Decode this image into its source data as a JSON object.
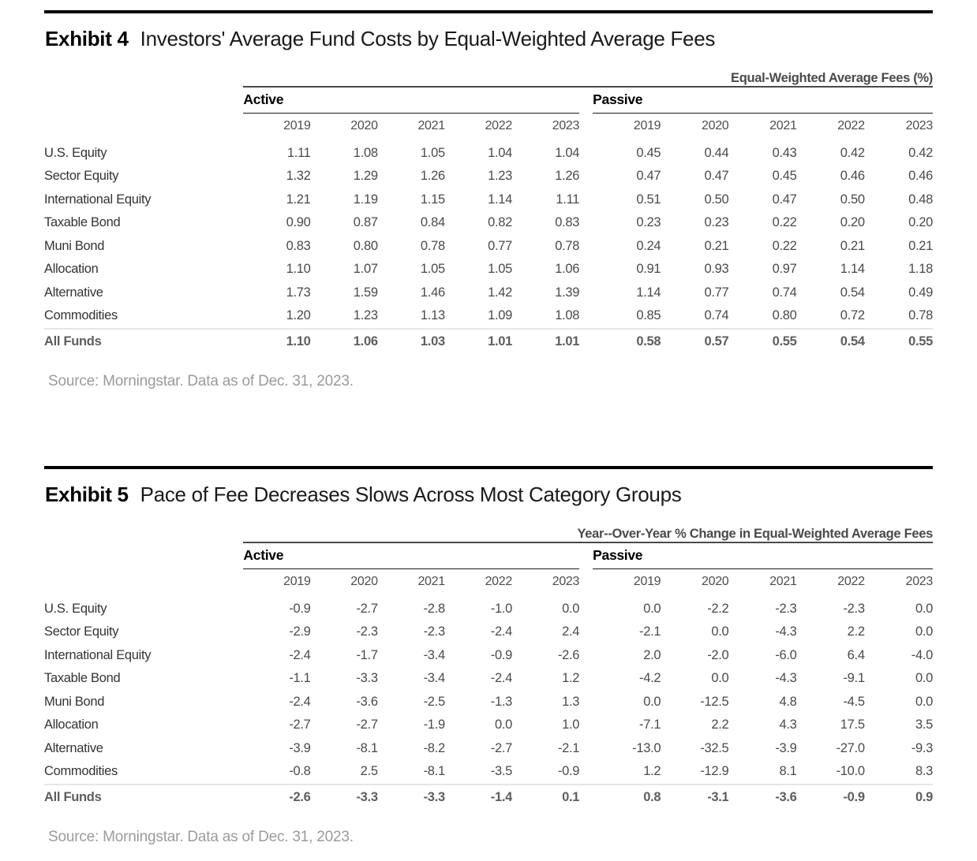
{
  "exhibits": [
    {
      "label": "Exhibit 4",
      "title": "Investors' Average Fund Costs by Equal-Weighted Average Fees",
      "table_title": "Equal-Weighted Average Fees (%)",
      "group_headers": [
        "Active",
        "Passive"
      ],
      "years": [
        "2019",
        "2020",
        "2021",
        "2022",
        "2023"
      ],
      "rows": [
        {
          "label": "U.S. Equity",
          "active": [
            "1.11",
            "1.08",
            "1.05",
            "1.04",
            "1.04"
          ],
          "passive": [
            "0.45",
            "0.44",
            "0.43",
            "0.42",
            "0.42"
          ]
        },
        {
          "label": "Sector Equity",
          "active": [
            "1.32",
            "1.29",
            "1.26",
            "1.23",
            "1.26"
          ],
          "passive": [
            "0.47",
            "0.47",
            "0.45",
            "0.46",
            "0.46"
          ]
        },
        {
          "label": "International Equity",
          "active": [
            "1.21",
            "1.19",
            "1.15",
            "1.14",
            "1.11"
          ],
          "passive": [
            "0.51",
            "0.50",
            "0.47",
            "0.50",
            "0.48"
          ]
        },
        {
          "label": "Taxable Bond",
          "active": [
            "0.90",
            "0.87",
            "0.84",
            "0.82",
            "0.83"
          ],
          "passive": [
            "0.23",
            "0.23",
            "0.22",
            "0.20",
            "0.20"
          ]
        },
        {
          "label": "Muni Bond",
          "active": [
            "0.83",
            "0.80",
            "0.78",
            "0.77",
            "0.78"
          ],
          "passive": [
            "0.24",
            "0.21",
            "0.22",
            "0.21",
            "0.21"
          ]
        },
        {
          "label": "Allocation",
          "active": [
            "1.10",
            "1.07",
            "1.05",
            "1.05",
            "1.06"
          ],
          "passive": [
            "0.91",
            "0.93",
            "0.97",
            "1.14",
            "1.18"
          ]
        },
        {
          "label": "Alternative",
          "active": [
            "1.73",
            "1.59",
            "1.46",
            "1.42",
            "1.39"
          ],
          "passive": [
            "1.14",
            "0.77",
            "0.74",
            "0.54",
            "0.49"
          ]
        },
        {
          "label": "Commodities",
          "active": [
            "1.20",
            "1.23",
            "1.13",
            "1.09",
            "1.08"
          ],
          "passive": [
            "0.85",
            "0.74",
            "0.80",
            "0.72",
            "0.78"
          ]
        }
      ],
      "total_row": {
        "label": "All Funds",
        "active": [
          "1.10",
          "1.06",
          "1.03",
          "1.01",
          "1.01"
        ],
        "passive": [
          "0.58",
          "0.57",
          "0.55",
          "0.54",
          "0.55"
        ]
      },
      "source": "Source: Morningstar. Data as of Dec. 31, 2023."
    },
    {
      "label": "Exhibit 5",
      "title": "Pace of Fee Decreases Slows Across Most Category Groups",
      "table_title": "Year--Over-Year % Change in Equal-Weighted Average Fees",
      "group_headers": [
        "Active",
        "Passive"
      ],
      "years": [
        "2019",
        "2020",
        "2021",
        "2022",
        "2023"
      ],
      "rows": [
        {
          "label": "U.S. Equity",
          "active": [
            "-0.9",
            "-2.7",
            "-2.8",
            "-1.0",
            "0.0"
          ],
          "passive": [
            "0.0",
            "-2.2",
            "-2.3",
            "-2.3",
            "0.0"
          ]
        },
        {
          "label": "Sector Equity",
          "active": [
            "-2.9",
            "-2.3",
            "-2.3",
            "-2.4",
            "2.4"
          ],
          "passive": [
            "-2.1",
            "0.0",
            "-4.3",
            "2.2",
            "0.0"
          ]
        },
        {
          "label": "International Equity",
          "active": [
            "-2.4",
            "-1.7",
            "-3.4",
            "-0.9",
            "-2.6"
          ],
          "passive": [
            "2.0",
            "-2.0",
            "-6.0",
            "6.4",
            "-4.0"
          ]
        },
        {
          "label": "Taxable Bond",
          "active": [
            "-1.1",
            "-3.3",
            "-3.4",
            "-2.4",
            "1.2"
          ],
          "passive": [
            "-4.2",
            "0.0",
            "-4.3",
            "-9.1",
            "0.0"
          ]
        },
        {
          "label": "Muni Bond",
          "active": [
            "-2.4",
            "-3.6",
            "-2.5",
            "-1.3",
            "1.3"
          ],
          "passive": [
            "0.0",
            "-12.5",
            "4.8",
            "-4.5",
            "0.0"
          ]
        },
        {
          "label": "Allocation",
          "active": [
            "-2.7",
            "-2.7",
            "-1.9",
            "0.0",
            "1.0"
          ],
          "passive": [
            "-7.1",
            "2.2",
            "4.3",
            "17.5",
            "3.5"
          ]
        },
        {
          "label": "Alternative",
          "active": [
            "-3.9",
            "-8.1",
            "-8.2",
            "-2.7",
            "-2.1"
          ],
          "passive": [
            "-13.0",
            "-32.5",
            "-3.9",
            "-27.0",
            "-9.3"
          ]
        },
        {
          "label": "Commodities",
          "active": [
            "-0.8",
            "2.5",
            "-8.1",
            "-3.5",
            "-0.9"
          ],
          "passive": [
            "1.2",
            "-12.9",
            "8.1",
            "-10.0",
            "8.3"
          ]
        }
      ],
      "total_row": {
        "label": "All Funds",
        "active": [
          "-2.6",
          "-3.3",
          "-3.3",
          "-1.4",
          "0.1"
        ],
        "passive": [
          "0.8",
          "-3.1",
          "-3.6",
          "-0.9",
          "0.9"
        ]
      },
      "source": "Source: Morningstar. Data as of Dec. 31, 2023."
    }
  ],
  "colors": {
    "accent_bar": "#000000",
    "header_rule": "#4a4a4a",
    "group_rule": "#1a1a1a",
    "total_separator": "#e6e6e6",
    "body_text": "#4a4a4a",
    "total_text": "#5e5e5e",
    "source_text": "#9b9b9b"
  }
}
